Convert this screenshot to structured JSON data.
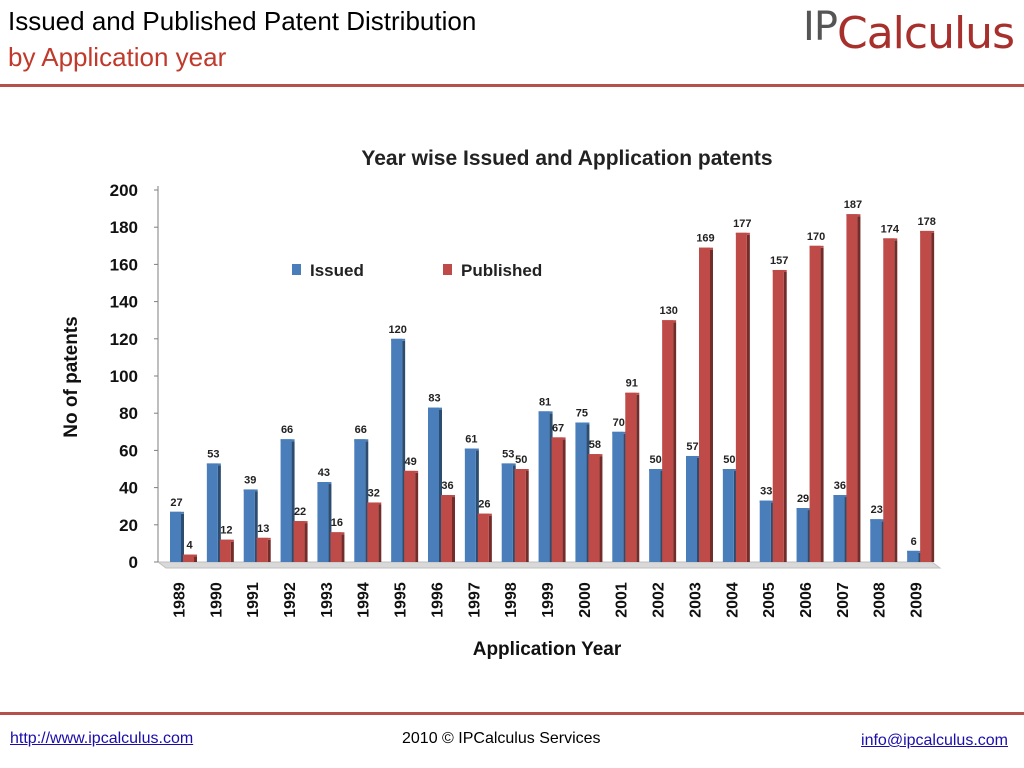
{
  "slide": {
    "title_line1": "Issued and Published Patent Distribution",
    "title_line2": "by Application year",
    "logo_ip": "IP",
    "logo_rest": "Calculus",
    "footer_left": "http://www.ipcalculus.com",
    "footer_center": "2010 © IPCalculus Services",
    "footer_right": "info@ipcalculus.com",
    "accent_color": "#c0392b",
    "rule_color": "#b5514a"
  },
  "chart_data": {
    "type": "bar",
    "title": "Year wise Issued and Application patents",
    "xlabel": "Application Year",
    "ylabel": "No of patents",
    "ylim": [
      0,
      200
    ],
    "yticks": [
      0,
      20,
      40,
      60,
      80,
      100,
      120,
      140,
      160,
      180,
      200
    ],
    "grid": false,
    "legend_position": "top",
    "categories": [
      "1989",
      "1990",
      "1991",
      "1992",
      "1993",
      "1994",
      "1995",
      "1996",
      "1997",
      "1998",
      "1999",
      "2000",
      "2001",
      "2002",
      "2003",
      "2004",
      "2005",
      "2006",
      "2007",
      "2008",
      "2009"
    ],
    "series": [
      {
        "name": "Issued",
        "color": "#4a7ebb",
        "values": [
          27,
          53,
          39,
          66,
          43,
          66,
          120,
          83,
          61,
          53,
          81,
          75,
          70,
          50,
          57,
          50,
          33,
          29,
          36,
          23,
          6
        ]
      },
      {
        "name": "Published",
        "color": "#be4b48",
        "values": [
          4,
          12,
          13,
          22,
          16,
          32,
          49,
          36,
          26,
          50,
          67,
          58,
          91,
          130,
          169,
          177,
          157,
          170,
          187,
          174,
          178
        ]
      }
    ]
  }
}
